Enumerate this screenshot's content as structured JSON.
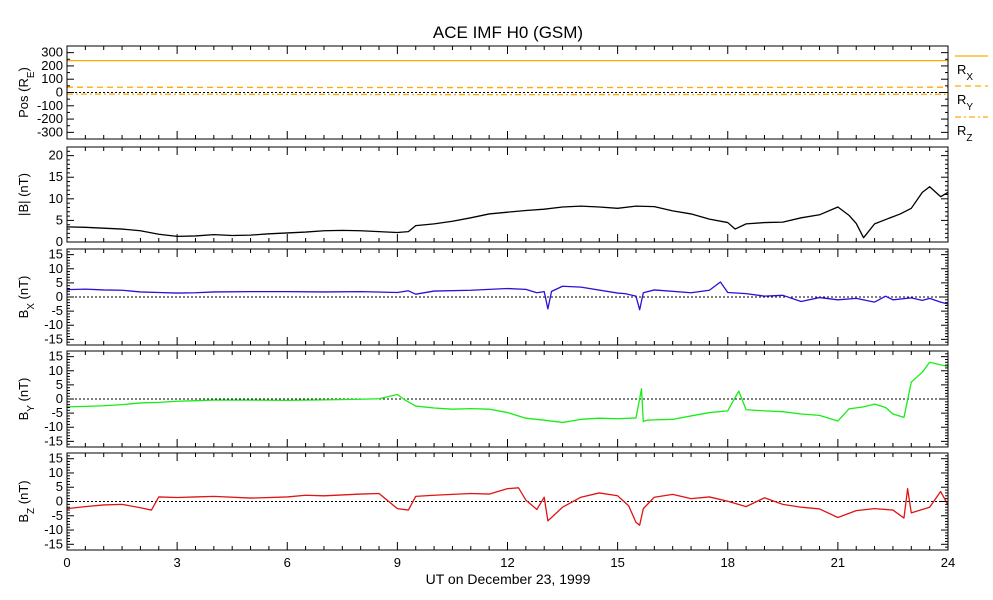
{
  "title": "ACE IMF H0 (GSM)",
  "xlabel": "UT on December 23, 1999",
  "x_ticks": [
    0,
    3,
    6,
    9,
    12,
    15,
    18,
    21,
    24
  ],
  "colors": {
    "black": "#000000",
    "blue": "#2a10d8",
    "green": "#16ee16",
    "red": "#e01414",
    "orange": "#ffaa00"
  },
  "chart_data": [
    {
      "type": "line",
      "panel": "position",
      "ylabel": "Pos (R",
      "ylabel_sub": "E",
      "ylabel_suffix": ")",
      "yticks": [
        300,
        200,
        100,
        0,
        -100,
        -200,
        -300
      ],
      "ylim": [
        -350,
        350
      ],
      "xlim": [
        0,
        24
      ],
      "zero_line": false,
      "series": [
        {
          "name": "R",
          "sub": "X",
          "style": "solid",
          "color": "#ffaa00",
          "x": [
            0,
            24
          ],
          "y": [
            240,
            240
          ]
        },
        {
          "name": "R",
          "sub": "Y",
          "style": "dashed",
          "color": "#ffaa00",
          "x": [
            0,
            6,
            12,
            18,
            24
          ],
          "y": [
            40,
            38,
            37,
            38,
            40
          ]
        },
        {
          "name": "R",
          "sub": "Z",
          "style": "dashdot",
          "color": "#ffaa00",
          "x": [
            0,
            6,
            12,
            18,
            24
          ],
          "y": [
            -12,
            -14,
            -16,
            -15,
            -13
          ]
        }
      ],
      "extra_series": [
        {
          "style": "dotted",
          "color": "#000000",
          "x": [
            0,
            24
          ],
          "y": [
            0,
            0
          ]
        }
      ]
    },
    {
      "type": "line",
      "panel": "btotal",
      "ylabel": "|B| (nT)",
      "ylabel_sub": "",
      "ylabel_suffix": "",
      "yticks": [
        20,
        15,
        10,
        5,
        0
      ],
      "ylim": [
        0,
        22
      ],
      "xlim": [
        0,
        24
      ],
      "zero_line": false,
      "series": [
        {
          "color": "#000000",
          "x": [
            0,
            0.5,
            1,
            1.5,
            2,
            2.5,
            3,
            3.5,
            4,
            4.5,
            5,
            5.5,
            6,
            6.5,
            7,
            7.5,
            8,
            8.5,
            9,
            9.3,
            9.5,
            10,
            10.5,
            11,
            11.5,
            12,
            12.5,
            13,
            13.5,
            14,
            14.5,
            15,
            15.5,
            16,
            16.5,
            17,
            17.5,
            18,
            18.2,
            18.5,
            19,
            19.5,
            20,
            20.5,
            21,
            21.3,
            21.5,
            21.7,
            22,
            22.3,
            22.7,
            23,
            23.3,
            23.5,
            23.8,
            24
          ],
          "y": [
            3.5,
            3.4,
            3.2,
            3.0,
            2.6,
            1.8,
            1.3,
            1.4,
            1.7,
            1.5,
            1.6,
            1.9,
            2.1,
            2.3,
            2.6,
            2.7,
            2.6,
            2.4,
            2.2,
            2.4,
            3.8,
            4.2,
            4.8,
            5.6,
            6.5,
            6.9,
            7.3,
            7.6,
            8.1,
            8.3,
            8.1,
            7.8,
            8.3,
            8.2,
            7.2,
            6.5,
            5.3,
            4.5,
            3.0,
            4.2,
            4.5,
            4.6,
            5.6,
            6.3,
            8.1,
            6.2,
            4.3,
            1.0,
            4.2,
            5.2,
            6.5,
            7.8,
            11.5,
            12.8,
            10.5,
            11.5
          ]
        }
      ]
    },
    {
      "type": "line",
      "panel": "bx",
      "ylabel": "B",
      "ylabel_sub": "X",
      "ylabel_suffix": " (nT)",
      "yticks": [
        15,
        10,
        5,
        0,
        -5,
        -10,
        -15
      ],
      "ylim": [
        -17,
        17
      ],
      "xlim": [
        0,
        24
      ],
      "zero_line": true,
      "series": [
        {
          "color": "#2a10d8",
          "x": [
            0,
            0.5,
            1,
            1.5,
            2,
            2.5,
            3,
            3.5,
            4,
            5,
            6,
            7,
            8,
            9,
            9.3,
            9.5,
            10,
            11,
            12,
            12.5,
            12.8,
            13.0,
            13.1,
            13.2,
            13.5,
            14,
            15,
            15.2,
            15.5,
            15.6,
            15.7,
            16,
            17,
            17.5,
            17.8,
            18,
            18.5,
            19,
            19.5,
            20,
            20.5,
            21,
            21.5,
            22,
            22.3,
            22.5,
            23,
            23.3,
            23.5,
            23.8,
            24
          ],
          "y": [
            2.6,
            2.8,
            2.5,
            2.4,
            1.8,
            1.6,
            1.4,
            1.5,
            1.8,
            1.9,
            1.9,
            1.8,
            1.9,
            1.6,
            2.2,
            1.0,
            2.1,
            2.4,
            3.0,
            2.7,
            1.5,
            1.9,
            -4.2,
            2.0,
            3.8,
            3.5,
            1.4,
            1.2,
            0.3,
            -4.5,
            1.5,
            2.5,
            1.5,
            2.4,
            5.3,
            1.6,
            1.2,
            0.3,
            0.6,
            -1.6,
            -0.2,
            -1.0,
            -0.5,
            -1.8,
            0.3,
            -1.0,
            -0.3,
            -1.2,
            -0.5,
            -1.8,
            -2.5
          ]
        }
      ]
    },
    {
      "type": "line",
      "panel": "by",
      "ylabel": "B",
      "ylabel_sub": "Y",
      "ylabel_suffix": " (nT)",
      "yticks": [
        15,
        10,
        5,
        0,
        -5,
        -10,
        -15
      ],
      "ylim": [
        -17,
        17
      ],
      "xlim": [
        0,
        24
      ],
      "zero_line": true,
      "series": [
        {
          "color": "#16ee16",
          "x": [
            0,
            0.5,
            1,
            1.5,
            2,
            2.5,
            3,
            3.5,
            4,
            5,
            6,
            7,
            8,
            8.5,
            9,
            9.2,
            9.5,
            10,
            10.5,
            11,
            11.5,
            12,
            12.5,
            13,
            13.5,
            14,
            14.5,
            15,
            15.5,
            15.65,
            15.7,
            15.8,
            16,
            16.5,
            17,
            17.5,
            18,
            18.3,
            18.5,
            19,
            19.5,
            20,
            20.5,
            21,
            21.3,
            21.7,
            22,
            22.3,
            22.5,
            22.8,
            23,
            23.3,
            23.5,
            24
          ],
          "y": [
            -2.8,
            -2.6,
            -2.4,
            -2.0,
            -1.4,
            -1.2,
            -0.8,
            -0.6,
            -0.4,
            -0.4,
            -0.5,
            -0.3,
            -0.1,
            0.1,
            1.6,
            -0.3,
            -2.5,
            -3.2,
            -3.6,
            -3.4,
            -3.6,
            -4.8,
            -6.8,
            -7.5,
            -8.3,
            -7.2,
            -6.8,
            -7.0,
            -6.7,
            3.6,
            -8.0,
            -7.5,
            -7.4,
            -7.2,
            -6.0,
            -4.8,
            -4.2,
            2.8,
            -3.8,
            -4.2,
            -4.5,
            -5.3,
            -5.8,
            -7.8,
            -3.5,
            -2.8,
            -1.8,
            -3.0,
            -5.3,
            -6.5,
            6.0,
            9.5,
            13.0,
            11.5
          ]
        }
      ]
    },
    {
      "type": "line",
      "panel": "bz",
      "ylabel": "B",
      "ylabel_sub": "Z",
      "ylabel_suffix": " (nT)",
      "yticks": [
        15,
        10,
        5,
        0,
        -5,
        -10,
        -15
      ],
      "ylim": [
        -17,
        17
      ],
      "xlim": [
        0,
        24
      ],
      "zero_line": true,
      "series": [
        {
          "color": "#e01414",
          "x": [
            0,
            0.5,
            1,
            1.5,
            2,
            2.3,
            2.5,
            3,
            3.5,
            4,
            5,
            6,
            6.5,
            7,
            8,
            8.5,
            9,
            9.3,
            9.5,
            10,
            10.5,
            11,
            11.5,
            12,
            12.3,
            12.5,
            12.8,
            13,
            13.1,
            13.5,
            14,
            14.5,
            15,
            15.3,
            15.5,
            15.6,
            15.7,
            16,
            16.5,
            17,
            17.5,
            18,
            18.5,
            19,
            19.5,
            20,
            20.5,
            21,
            21.5,
            22,
            22.5,
            22.8,
            22.9,
            23,
            23.5,
            23.8,
            24
          ],
          "y": [
            -2.5,
            -1.8,
            -1.2,
            -1.0,
            -2.2,
            -3.0,
            1.6,
            1.4,
            1.6,
            1.8,
            1.2,
            1.6,
            2.2,
            2.0,
            2.6,
            2.8,
            -2.5,
            -3.0,
            1.8,
            2.2,
            2.5,
            2.8,
            2.6,
            4.5,
            4.8,
            0.5,
            -2.8,
            1.5,
            -6.8,
            -2.0,
            1.5,
            3.0,
            2.0,
            -1.5,
            -7.3,
            -8.3,
            -2.5,
            1.5,
            2.5,
            1.0,
            1.6,
            0.1,
            -1.8,
            1.3,
            -1.0,
            -2.0,
            -2.6,
            -5.6,
            -3.2,
            -2.5,
            -3.0,
            -5.8,
            4.5,
            -4.0,
            -2.0,
            3.5,
            -1.2
          ]
        }
      ]
    }
  ]
}
